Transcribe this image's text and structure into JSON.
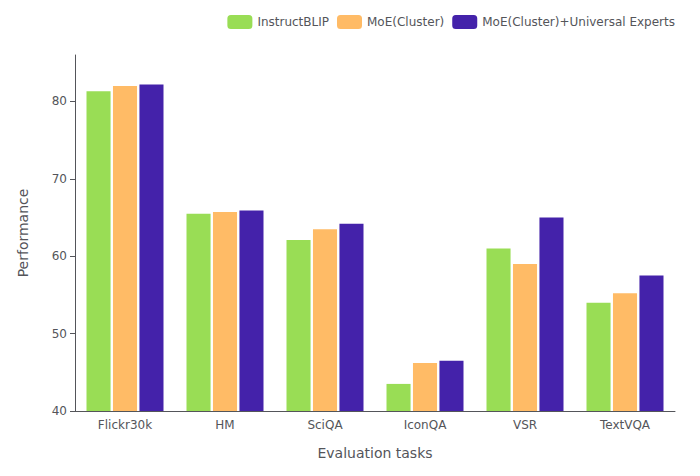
{
  "chart_data": {
    "type": "bar",
    "xlabel": "Evaluation tasks",
    "ylabel": "Performance",
    "categories": [
      "Flickr30k",
      "HM",
      "SciQA",
      "IconQA",
      "VSR",
      "TextVQA"
    ],
    "series": [
      {
        "name": "InstructBLIP",
        "color": "#99dd55",
        "values": [
          81.3,
          65.5,
          62.1,
          43.5,
          61.0,
          54.0
        ]
      },
      {
        "name": "MoE(Cluster)",
        "color": "#ffbb66",
        "values": [
          82.0,
          65.7,
          63.5,
          46.2,
          59.0,
          55.2
        ]
      },
      {
        "name": "MoE(Cluster)+Universal Experts",
        "color": "#4422aa",
        "values": [
          82.2,
          65.9,
          64.2,
          46.5,
          65.0,
          57.5
        ]
      }
    ],
    "ylim": [
      40,
      86
    ],
    "yticks": [
      40,
      50,
      60,
      70,
      80
    ],
    "grid": false,
    "legend": "upper right"
  }
}
